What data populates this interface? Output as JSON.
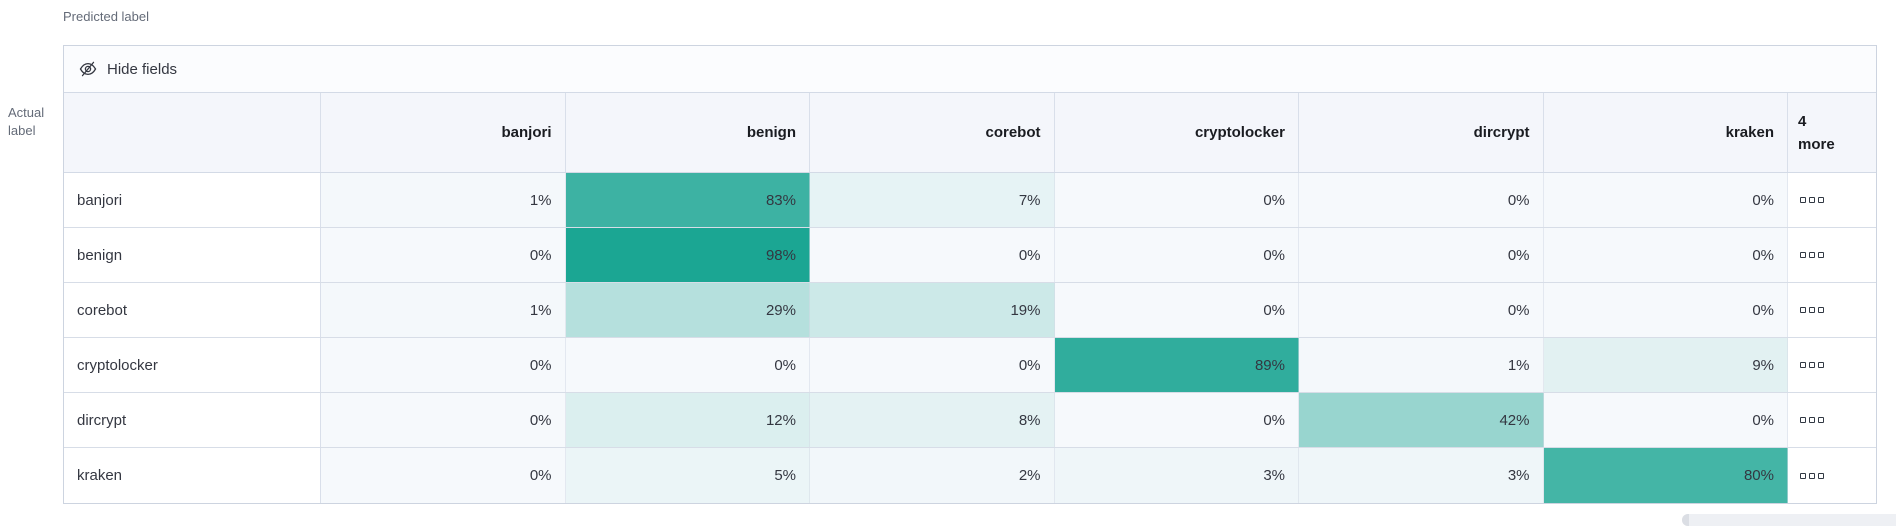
{
  "panel": {
    "predicted_axis_label": "Predicted label",
    "actual_axis_label": "Actual\nlabel"
  },
  "toolbar": {
    "hide_fields_label": "Hide fields"
  },
  "chart_data": {
    "type": "heatmap",
    "xlabel": "Predicted label",
    "ylabel": "Actual label",
    "columns": [
      "banjori",
      "benign",
      "corebot",
      "cryptolocker",
      "dircrypt",
      "kraken"
    ],
    "hidden_columns_label": "4\nmore",
    "rows": [
      "banjori",
      "benign",
      "corebot",
      "cryptolocker",
      "dircrypt",
      "kraken"
    ],
    "values_percent": [
      [
        1,
        83,
        7,
        0,
        0,
        0
      ],
      [
        0,
        98,
        0,
        0,
        0,
        0
      ],
      [
        1,
        29,
        19,
        0,
        0,
        0
      ],
      [
        0,
        0,
        0,
        89,
        1,
        9
      ],
      [
        0,
        12,
        8,
        0,
        42,
        0
      ],
      [
        0,
        5,
        2,
        3,
        3,
        80
      ]
    ],
    "value_suffix": "%",
    "color_scale": {
      "min": "#F6F9FC",
      "max": "#17A491"
    }
  }
}
